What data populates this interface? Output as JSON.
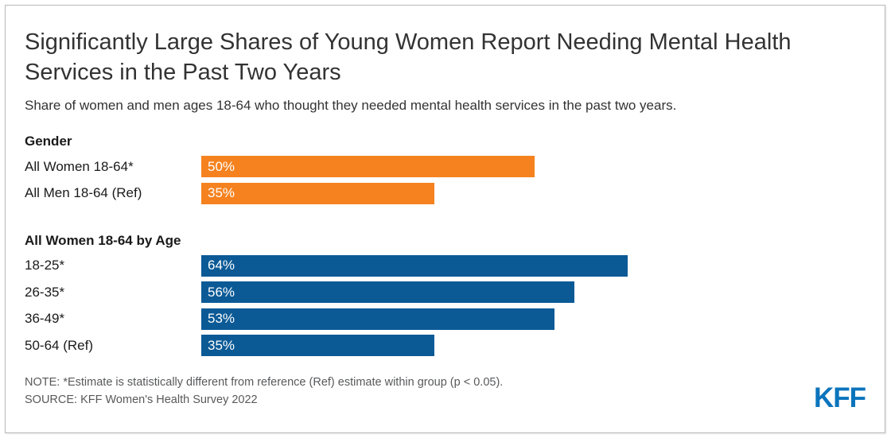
{
  "header": {
    "title": "Significantly Large Shares of Young Women Report Needing Mental Health Services in the Past Two Years",
    "subtitle": "Share of women and men ages 18-64 who thought they needed mental health services in the past two years."
  },
  "chart_data": {
    "type": "bar",
    "orientation": "horizontal",
    "value_axis_max": 100,
    "grid": false,
    "legend": false,
    "groups": [
      {
        "heading": "Gender",
        "color": "#F5821F",
        "rows": [
          {
            "label": "All Women 18-64*",
            "value": 50,
            "value_label": "50%"
          },
          {
            "label": "All Men 18-64 (Ref)",
            "value": 35,
            "value_label": "35%"
          }
        ]
      },
      {
        "heading": "All Women 18-64 by Age",
        "color": "#0B5A96",
        "rows": [
          {
            "label": "18-25*",
            "value": 64,
            "value_label": "64%"
          },
          {
            "label": "26-35*",
            "value": 56,
            "value_label": "56%"
          },
          {
            "label": "36-49*",
            "value": 53,
            "value_label": "53%"
          },
          {
            "label": "50-64 (Ref)",
            "value": 35,
            "value_label": "35%"
          }
        ]
      }
    ]
  },
  "footer": {
    "note": "NOTE: *Estimate is statistically different from reference (Ref) estimate within group (p < 0.05).",
    "source": "SOURCE: KFF Women's Health Survey 2022",
    "logo": "KFF",
    "logo_color": "#0B74BC"
  }
}
